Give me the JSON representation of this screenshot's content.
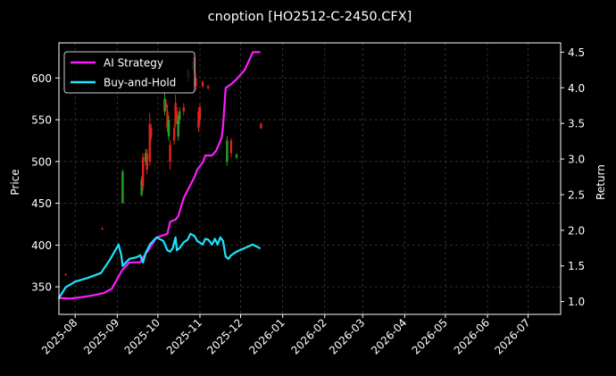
{
  "chart_data": {
    "type": "line",
    "title": "cnoption [HO2512-C-2450.CFX]",
    "xlabel": "",
    "ylabel": "Price",
    "y2label": "Return",
    "x_ticks": [
      "2025-08",
      "2025-09",
      "2025-10",
      "2025-11",
      "2025-12",
      "2026-01",
      "2026-02",
      "2026-03",
      "2026-04",
      "2026-05",
      "2026-06",
      "2026-07"
    ],
    "xlim": [
      "2025-07-20",
      "2026-07-25"
    ],
    "ylim": [
      317,
      642
    ],
    "y_ticks": [
      350,
      400,
      450,
      500,
      550,
      600
    ],
    "y2lim": [
      0.82,
      4.63
    ],
    "y2_ticks": [
      "1.0",
      "1.5",
      "2.0",
      "2.5",
      "3.0",
      "3.5",
      "4.0",
      "4.5"
    ],
    "grid": true,
    "legend": {
      "placement": "top-left",
      "entries": [
        "AI Strategy",
        "Buy-and-Hold"
      ]
    },
    "colors": {
      "ai": "#ff1aff",
      "bh": "#1ae6ff",
      "up": "#2aa02a",
      "down": "#e0241c",
      "grid": "#3a3a3a"
    },
    "series": [
      {
        "name": "AI Strategy",
        "axis": "right",
        "x": [
          "2025-07-20",
          "2025-07-28",
          "2025-08-05",
          "2025-08-15",
          "2025-08-22",
          "2025-08-28",
          "2025-09-04",
          "2025-09-05",
          "2025-09-10",
          "2025-09-18",
          "2025-09-20",
          "2025-09-25",
          "2025-09-30",
          "2025-10-08",
          "2025-10-10",
          "2025-10-14",
          "2025-10-16",
          "2025-10-20",
          "2025-10-24",
          "2025-10-28",
          "2025-10-30",
          "2025-11-03",
          "2025-11-05",
          "2025-11-10",
          "2025-11-13",
          "2025-11-17",
          "2025-11-18",
          "2025-11-20",
          "2025-11-24",
          "2025-11-28",
          "2025-12-04",
          "2025-12-10",
          "2025-12-15"
        ],
        "y": [
          1.05,
          1.04,
          1.06,
          1.09,
          1.12,
          1.18,
          1.42,
          1.45,
          1.55,
          1.55,
          1.62,
          1.75,
          1.9,
          1.95,
          2.12,
          2.15,
          2.2,
          2.45,
          2.6,
          2.75,
          2.85,
          2.95,
          3.05,
          3.05,
          3.12,
          3.3,
          3.45,
          4.0,
          4.05,
          4.12,
          4.25,
          4.5,
          4.5
        ]
      },
      {
        "name": "Buy-and-Hold",
        "axis": "right",
        "x": [
          "2025-07-20",
          "2025-07-25",
          "2025-08-01",
          "2025-08-10",
          "2025-08-20",
          "2025-08-27",
          "2025-09-02",
          "2025-09-04",
          "2025-09-05",
          "2025-09-10",
          "2025-09-15",
          "2025-09-18",
          "2025-09-20",
          "2025-09-22",
          "2025-09-25",
          "2025-09-30",
          "2025-10-05",
          "2025-10-08",
          "2025-10-10",
          "2025-10-12",
          "2025-10-14",
          "2025-10-15",
          "2025-10-17",
          "2025-10-20",
          "2025-10-23",
          "2025-10-25",
          "2025-10-28",
          "2025-10-30",
          "2025-11-03",
          "2025-11-05",
          "2025-11-07",
          "2025-11-10",
          "2025-11-12",
          "2025-11-14",
          "2025-11-16",
          "2025-11-18",
          "2025-11-20",
          "2025-11-22",
          "2025-11-24",
          "2025-11-28",
          "2025-12-04",
          "2025-12-10",
          "2025-12-15"
        ],
        "y": [
          1.05,
          1.2,
          1.28,
          1.33,
          1.4,
          1.6,
          1.8,
          1.65,
          1.5,
          1.6,
          1.62,
          1.65,
          1.55,
          1.68,
          1.8,
          1.9,
          1.85,
          1.72,
          1.7,
          1.75,
          1.9,
          1.72,
          1.75,
          1.83,
          1.87,
          1.95,
          1.92,
          1.85,
          1.8,
          1.88,
          1.87,
          1.8,
          1.88,
          1.8,
          1.9,
          1.85,
          1.63,
          1.6,
          1.65,
          1.7,
          1.75,
          1.8,
          1.75
        ]
      }
    ],
    "candles": [
      {
        "x": "2025-07-25",
        "o": 365,
        "c": 364,
        "h": 366,
        "l": 363
      },
      {
        "x": "2025-08-21",
        "o": 420,
        "c": 419,
        "h": 421,
        "l": 418
      },
      {
        "x": "2025-09-05",
        "o": 450,
        "c": 488,
        "h": 490,
        "l": 450
      },
      {
        "x": "2025-09-19",
        "o": 460,
        "c": 478,
        "h": 482,
        "l": 458
      },
      {
        "x": "2025-09-20",
        "o": 505,
        "c": 470,
        "h": 510,
        "l": 465
      },
      {
        "x": "2025-09-22",
        "o": 500,
        "c": 510,
        "h": 515,
        "l": 495
      },
      {
        "x": "2025-09-23",
        "o": 510,
        "c": 490,
        "h": 515,
        "l": 485
      },
      {
        "x": "2025-09-25",
        "o": 545,
        "c": 500,
        "h": 558,
        "l": 495
      },
      {
        "x": "2025-09-26",
        "o": 540,
        "c": 530,
        "h": 545,
        "l": 525
      },
      {
        "x": "2025-10-06",
        "o": 560,
        "c": 575,
        "h": 585,
        "l": 555
      },
      {
        "x": "2025-10-07",
        "o": 570,
        "c": 565,
        "h": 575,
        "l": 560
      },
      {
        "x": "2025-10-08",
        "o": 560,
        "c": 540,
        "h": 568,
        "l": 535
      },
      {
        "x": "2025-10-09",
        "o": 530,
        "c": 550,
        "h": 555,
        "l": 525
      },
      {
        "x": "2025-10-10",
        "o": 520,
        "c": 500,
        "h": 525,
        "l": 490
      },
      {
        "x": "2025-10-13",
        "o": 540,
        "c": 525,
        "h": 545,
        "l": 520
      },
      {
        "x": "2025-10-14",
        "o": 570,
        "c": 545,
        "h": 580,
        "l": 540
      },
      {
        "x": "2025-10-15",
        "o": 560,
        "c": 550,
        "h": 565,
        "l": 545
      },
      {
        "x": "2025-10-16",
        "o": 530,
        "c": 550,
        "h": 555,
        "l": 525
      },
      {
        "x": "2025-10-17",
        "o": 550,
        "c": 560,
        "h": 565,
        "l": 545
      },
      {
        "x": "2025-10-20",
        "o": 565,
        "c": 560,
        "h": 570,
        "l": 555
      },
      {
        "x": "2025-10-23",
        "o": 600,
        "c": 610,
        "h": 612,
        "l": 595
      },
      {
        "x": "2025-10-24",
        "o": 605,
        "c": 600,
        "h": 608,
        "l": 595
      },
      {
        "x": "2025-10-27",
        "o": 610,
        "c": 620,
        "h": 625,
        "l": 608
      },
      {
        "x": "2025-10-28",
        "o": 625,
        "c": 605,
        "h": 628,
        "l": 600
      },
      {
        "x": "2025-10-29",
        "o": 600,
        "c": 590,
        "h": 605,
        "l": 585
      },
      {
        "x": "2025-10-31",
        "o": 560,
        "c": 540,
        "h": 565,
        "l": 535
      },
      {
        "x": "2025-11-01",
        "o": 565,
        "c": 550,
        "h": 570,
        "l": 545
      },
      {
        "x": "2025-11-03",
        "o": 595,
        "c": 590,
        "h": 597,
        "l": 588
      },
      {
        "x": "2025-11-07",
        "o": 590,
        "c": 588,
        "h": 592,
        "l": 586
      },
      {
        "x": "2025-11-21",
        "o": 500,
        "c": 525,
        "h": 530,
        "l": 495
      },
      {
        "x": "2025-11-24",
        "o": 525,
        "c": 510,
        "h": 528,
        "l": 505
      },
      {
        "x": "2025-11-28",
        "o": 505,
        "c": 508,
        "h": 510,
        "l": 503
      },
      {
        "x": "2025-12-16",
        "o": 545,
        "c": 540,
        "h": 547,
        "l": 539
      }
    ]
  }
}
